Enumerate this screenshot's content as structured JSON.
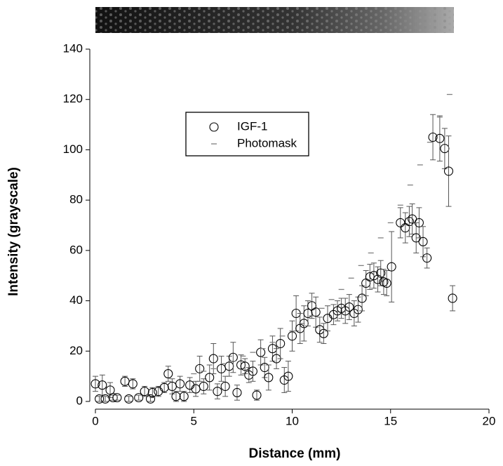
{
  "chart_data": {
    "type": "scatter",
    "xlabel": "Distance (mm)",
    "ylabel": "Intensity (grayscale)",
    "xlim": [
      0,
      20
    ],
    "xticks": [
      0,
      5,
      10,
      15,
      20
    ],
    "ylim": [
      0,
      140
    ],
    "yticks": [
      0,
      20,
      40,
      60,
      80,
      100,
      120,
      140
    ],
    "series": [
      {
        "name": "IGF-1",
        "color": "#000000",
        "marker": "open-circle",
        "x": [
          0,
          0.2,
          0.35,
          0.5,
          0.75,
          0.9,
          1.1,
          1.5,
          1.7,
          1.9,
          2.2,
          2.5,
          2.8,
          2.9,
          3.2,
          3.5,
          3.7,
          3.9,
          4.1,
          4.3,
          4.5,
          4.8,
          5.1,
          5.3,
          5.5,
          5.8,
          6,
          6.2,
          6.4,
          6.6,
          6.8,
          7,
          7.2,
          7.4,
          7.6,
          7.8,
          8,
          8.2,
          8.4,
          8.6,
          8.8,
          9,
          9.2,
          9.4,
          9.6,
          9.8,
          10,
          10.2,
          10.4,
          10.6,
          10.8,
          11,
          11.2,
          11.4,
          11.6,
          11.8,
          12.1,
          12.3,
          12.5,
          12.7,
          12.9,
          13.15,
          13.35,
          13.55,
          13.75,
          13.95,
          14.15,
          14.35,
          14.5,
          14.65,
          14.8,
          15.05,
          15.5,
          15.75,
          15.95,
          16.1,
          16.3,
          16.45,
          16.65,
          16.85,
          17.15,
          17.5,
          17.75,
          17.95,
          18.15
        ],
        "values": [
          7,
          1,
          6.5,
          1,
          4.5,
          1.5,
          1.5,
          8,
          1,
          7,
          1.5,
          4,
          1,
          3.5,
          4,
          5.5,
          11,
          6,
          2,
          7,
          2,
          6.5,
          5,
          13,
          6,
          9.5,
          17,
          4,
          13,
          6,
          14,
          17.5,
          3.5,
          14.5,
          14,
          10.5,
          12,
          2.5,
          19.5,
          13.5,
          9.5,
          21,
          17,
          23,
          8.5,
          10,
          26,
          35,
          29,
          31,
          35,
          38,
          35.5,
          28.5,
          27,
          33,
          34.5,
          36,
          37,
          36,
          37.5,
          35,
          36.5,
          41,
          47,
          49.5,
          50,
          48.5,
          51,
          47.5,
          47,
          53.5,
          71,
          69,
          71.5,
          72.5,
          65,
          71,
          63.5,
          57,
          105,
          104.5,
          100.5,
          91.5,
          41
        ],
        "errors": [
          3,
          1,
          4,
          1,
          3,
          1,
          1,
          2,
          1,
          2,
          1,
          2,
          1,
          2,
          2,
          2,
          3,
          3,
          2,
          3,
          2,
          3,
          3,
          5,
          3,
          5,
          6,
          3,
          5,
          4,
          4,
          6,
          3,
          4,
          3,
          3,
          4,
          2,
          5,
          4,
          5,
          5,
          4,
          6,
          5,
          6,
          6,
          7,
          6,
          7,
          5,
          5,
          6,
          5,
          4,
          5,
          4,
          4,
          4,
          5,
          5,
          5,
          5,
          5,
          5,
          5,
          5,
          5,
          5,
          5,
          5,
          14,
          6,
          6,
          6,
          6,
          6,
          6,
          6,
          4,
          9,
          9,
          8,
          14,
          5
        ]
      },
      {
        "name": "Photomask",
        "color": "#808080",
        "marker": "dash",
        "x": [
          5,
          5.5,
          6,
          6.5,
          7,
          7.5,
          8,
          8.5,
          9,
          9.5,
          10,
          10.5,
          11,
          11.5,
          12,
          12.5,
          13,
          13.5,
          14,
          14.5,
          15,
          15.5,
          16,
          16.5,
          17,
          17.5,
          18
        ],
        "values": [
          11,
          12,
          13,
          15,
          16,
          18,
          19.5,
          21,
          23.5,
          26,
          28,
          31,
          34,
          37,
          40.5,
          44.5,
          49,
          54,
          59,
          65,
          71,
          78,
          86,
          94,
          103,
          113,
          122
        ]
      }
    ]
  }
}
